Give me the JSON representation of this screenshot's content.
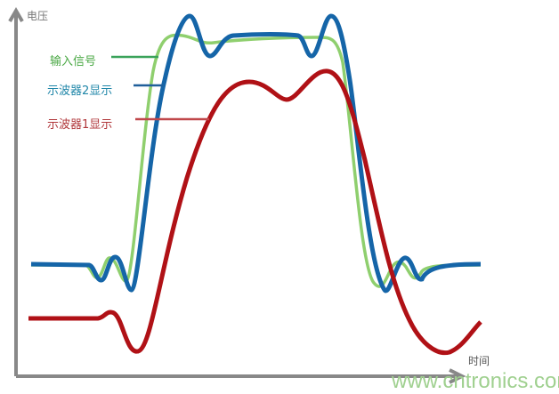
{
  "axes": {
    "y_label": "电压",
    "x_label": "时间"
  },
  "legend": [
    {
      "label": "输入信号",
      "color": "#8fcf6e",
      "text_color": "#4aa844",
      "line_color": "#3aa35a"
    },
    {
      "label": "示波器2显示",
      "color": "#1565a8",
      "text_color": "#1f86a8",
      "line_color": "#1f5f9a"
    },
    {
      "label": "示波器1显示",
      "color": "#b01116",
      "text_color": "#b0363a",
      "line_color": "#c0474a"
    }
  ],
  "watermark": "www.cntronics.com"
}
